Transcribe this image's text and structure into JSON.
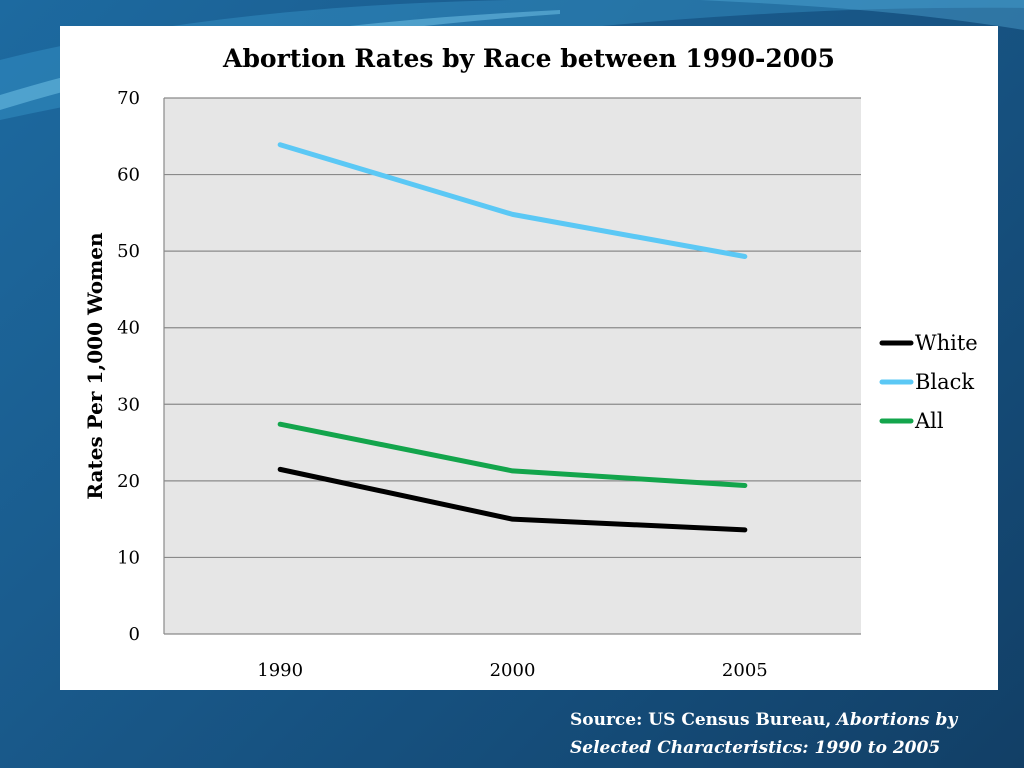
{
  "chart_data": {
    "type": "line",
    "title": "Abortion Rates by Race between 1990-2005",
    "xlabel": "",
    "ylabel": "Rates Per 1,000 Women",
    "categories": [
      "1990",
      "2000",
      "2005"
    ],
    "series": [
      {
        "name": "White",
        "values": [
          21.5,
          15.0,
          13.6
        ],
        "color": "#000000"
      },
      {
        "name": "Black",
        "values": [
          63.9,
          54.8,
          49.3
        ],
        "color": "#5bc8f5"
      },
      {
        "name": "All",
        "values": [
          27.4,
          21.3,
          19.4
        ],
        "color": "#13a54c"
      }
    ],
    "ylim": [
      0,
      70
    ],
    "yticks": [
      "0",
      "10",
      "20",
      "30",
      "40",
      "50",
      "60",
      "70"
    ],
    "grid": true,
    "legend": "right"
  },
  "source": {
    "prefix": "Source: US Census Bureau,",
    "italic_line1": "Abortions by",
    "italic_line2": "Selected Characteristics: 1990 to 2005"
  }
}
